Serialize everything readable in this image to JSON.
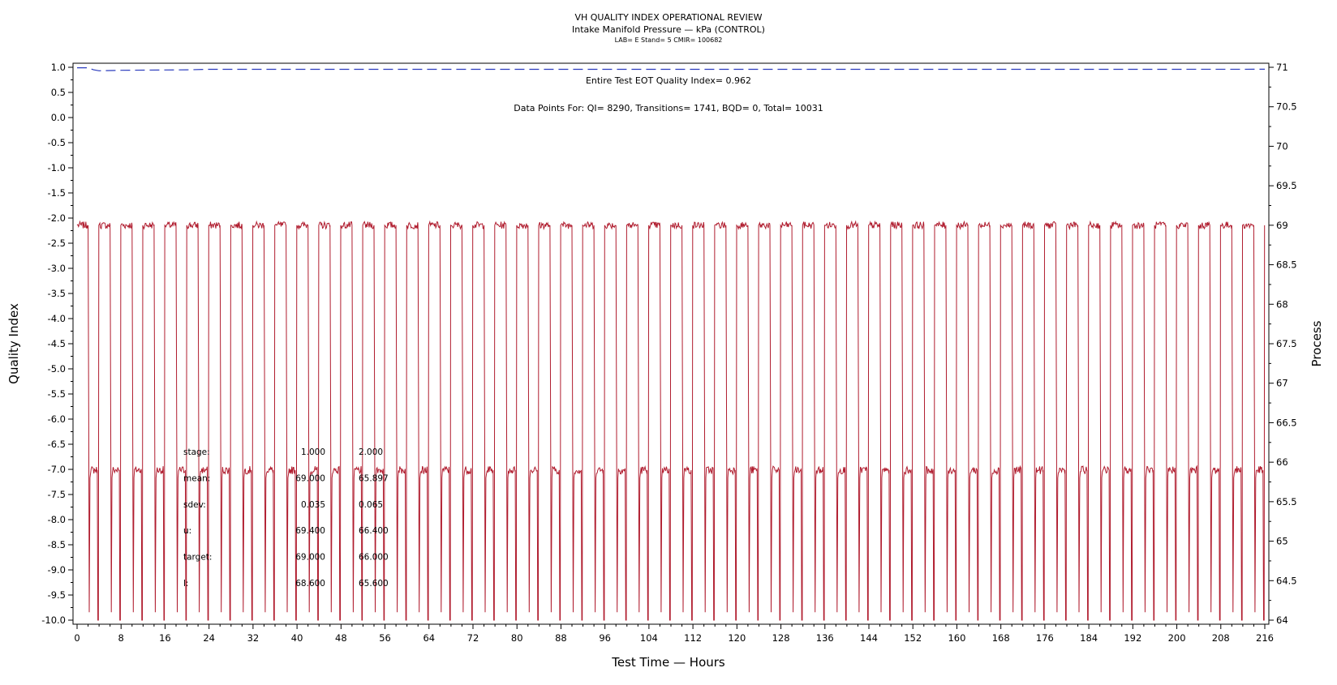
{
  "header": {
    "title": "VH QUALITY INDEX OPERATIONAL REVIEW",
    "subtitle": "Intake Manifold Pressure — kPa (CONTROL)",
    "lab_line": "LAB= E Stand= 5 CMIR= 100682"
  },
  "annotations": {
    "eot": "Entire Test EOT Quality Index=   0.962",
    "datapoints": "Data Points For: QI=  8290, Transitions=  1741, BQD=     0, Total= 10031"
  },
  "stats": {
    "rows": [
      {
        "label": "stage:",
        "v1": "1.000",
        "v2": "2.000"
      },
      {
        "label": "mean:",
        "v1": "69.000",
        "v2": "65.897"
      },
      {
        "label": "sdev:",
        "v1": "0.035",
        "v2": "0.065"
      },
      {
        "label": "u:",
        "v1": "69.400",
        "v2": "66.400"
      },
      {
        "label": "target:",
        "v1": "69.000",
        "v2": "66.000"
      },
      {
        "label": "l:",
        "v1": "68.600",
        "v2": "65.600"
      }
    ]
  },
  "chart_data": {
    "type": "line",
    "xlabel": "Test Time — Hours",
    "ylabel": "Quality Index",
    "y2label": "Process",
    "xlim": [
      0,
      216
    ],
    "ylim": [
      -10.0,
      1.0
    ],
    "y2lim": [
      64,
      71
    ],
    "x_ticks": [
      0,
      8,
      16,
      24,
      32,
      40,
      48,
      56,
      64,
      72,
      80,
      88,
      96,
      104,
      112,
      120,
      128,
      136,
      144,
      152,
      160,
      168,
      176,
      184,
      192,
      200,
      208,
      216
    ],
    "x_tick_labels": [
      "0",
      "8",
      "16",
      "24",
      "32",
      "40",
      "48",
      "56",
      "64",
      "72",
      "80",
      "88",
      "96",
      "104",
      "112",
      "120",
      "128",
      "136",
      "144",
      "152",
      "160",
      "168",
      "176",
      "184",
      "192",
      "200",
      "208",
      "216"
    ],
    "y_ticks": [
      1.0,
      0.5,
      0.0,
      -0.5,
      -1.0,
      -1.5,
      -2.0,
      -2.5,
      -3.0,
      -3.5,
      -4.0,
      -4.5,
      -5.0,
      -5.5,
      -6.0,
      -6.5,
      -7.0,
      -7.5,
      -8.0,
      -8.5,
      -9.0,
      -9.5,
      -10.0
    ],
    "y_tick_labels": [
      "1.0",
      "0.5",
      "0.0",
      "-0.5",
      "-1.0",
      "-1.5",
      "-2.0",
      "-2.5",
      "-3.0",
      "-3.5",
      "-4.0",
      "-4.5",
      "-5.0",
      "-5.5",
      "-6.0",
      "-6.5",
      "-7.0",
      "-7.5",
      "-8.0",
      "-8.5",
      "-9.0",
      "-9.5",
      "-10.0"
    ],
    "y2_ticks": [
      71,
      70.5,
      70,
      69.5,
      69,
      68.5,
      68,
      67.5,
      67,
      66.5,
      66,
      65.5,
      65,
      64.5,
      64
    ],
    "y2_tick_labels": [
      "71",
      "70.5",
      "70",
      "69.5",
      "69",
      "68.5",
      "68",
      "67.5",
      "67",
      "66.5",
      "66",
      "65.5",
      "65",
      "64.5",
      "64"
    ],
    "series": [
      {
        "axis": "left",
        "color": "#2a3bbd",
        "style": "dashed",
        "x": [
          0,
          2,
          3,
          4,
          8,
          20,
          24,
          40,
          56,
          72,
          96,
          120,
          144,
          168,
          192,
          216
        ],
        "y": [
          0.99,
          0.99,
          0.95,
          0.93,
          0.94,
          0.95,
          0.96,
          0.96,
          0.96,
          0.96,
          0.96,
          0.96,
          0.96,
          0.96,
          0.96,
          0.962
        ]
      },
      {
        "axis": "right",
        "color": "#b01c2e",
        "style": "solid",
        "pattern": "alternating step cycles between 69 (stage 1) and 66 (stage 2) with transitions dipping toward 64",
        "cycle_starts": [
          0,
          4,
          8,
          12,
          16,
          20,
          24,
          28,
          32,
          36,
          40,
          44,
          48,
          52,
          56,
          60,
          64,
          68,
          72,
          76,
          80,
          84,
          88,
          92,
          96,
          100,
          104,
          108,
          112,
          116,
          120,
          124,
          128,
          132,
          136,
          140,
          144,
          148,
          152,
          156,
          160,
          164,
          168,
          172,
          176,
          180,
          184,
          188,
          192,
          196,
          200,
          204,
          208,
          212
        ],
        "high_level": 69.0,
        "low_level": 65.9,
        "dip_level": 64.0
      }
    ],
    "grid": false,
    "legend": "none"
  }
}
